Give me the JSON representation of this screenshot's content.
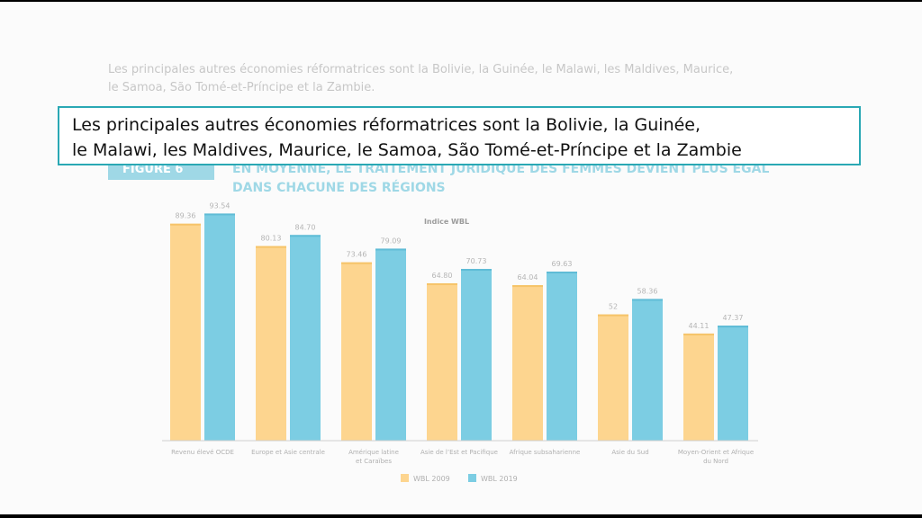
{
  "caption": {
    "line1": "Les principales autres économies réformatrices sont la Bolivie, la Guinée,",
    "line2": "le Malawi, les Maldives, Maurice, le Samoa, São Tomé-et-Príncipe et la Zambie"
  },
  "slide": {
    "intro_line1": "Les principales autres économies réformatrices sont la Bolivie, la Guinée, le Malawi, les Maldives, Maurice,",
    "intro_line2": "le Samoa, São Tomé-et-Príncipe et la Zambie.",
    "figure_label": "FIGURE 6",
    "figure_title_line1": "EN MOYENNE, LE TRAITEMENT JURIDIQUE DES FEMMES DEVIENT PLUS ÉGAL",
    "figure_title_line2": "DANS CHACUNE DES RÉGIONS"
  },
  "chart_data": {
    "type": "bar",
    "title": "Indice WBL",
    "categories": [
      "Revenu élevé OCDE",
      "Europe et Asie centrale",
      "Amérique latine et Caraïbes",
      "Asie de l’Est et Pacifique",
      "Afrique subsaharienne",
      "Asie du Sud",
      "Moyen-Orient et Afrique du Nord"
    ],
    "series": [
      {
        "name": "WBL 2009",
        "color": "#fdd58f",
        "values": [
          89.36,
          80.13,
          73.46,
          64.8,
          64.04,
          52,
          44.11
        ],
        "labels": [
          "89.36",
          "80.13",
          "73.46",
          "64.80",
          "64.04",
          "52",
          "44.11"
        ]
      },
      {
        "name": "WBL 2019",
        "color": "#7ccde3",
        "values": [
          93.54,
          84.7,
          79.09,
          70.73,
          69.63,
          58.36,
          47.37
        ],
        "labels": [
          "93.54",
          "84.70",
          "79.09",
          "70.73",
          "69.63",
          "58.36",
          "47.37"
        ]
      }
    ],
    "ylim": [
      0,
      100
    ],
    "grid": false,
    "legend": "bottom-left"
  }
}
